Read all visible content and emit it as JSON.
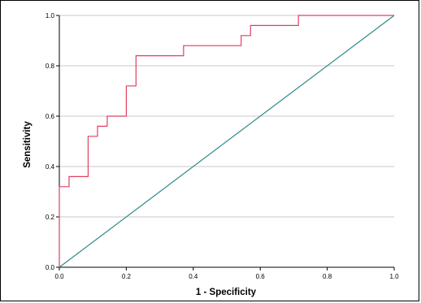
{
  "chart_data": {
    "type": "line",
    "xlabel": "1 - Specificity",
    "ylabel": "Sensitivity",
    "xlim": [
      0.0,
      1.0
    ],
    "ylim": [
      0.0,
      1.0
    ],
    "x_ticks": [
      "0.0",
      "0.2",
      "0.4",
      "0.6",
      "0.8",
      "1.0"
    ],
    "y_ticks": [
      "0.0",
      "0.2",
      "0.4",
      "0.6",
      "0.8",
      "1.0"
    ],
    "grid": "horizontal",
    "series": [
      {
        "color": "#e0405e",
        "step": true,
        "x": [
          0.0,
          0.0,
          0.029,
          0.029,
          0.086,
          0.086,
          0.114,
          0.114,
          0.143,
          0.143,
          0.2,
          0.2,
          0.229,
          0.229,
          0.371,
          0.371,
          0.543,
          0.543,
          0.571,
          0.571,
          0.714,
          0.714,
          1.0
        ],
        "y": [
          0.0,
          0.32,
          0.32,
          0.36,
          0.36,
          0.52,
          0.52,
          0.56,
          0.56,
          0.6,
          0.6,
          0.72,
          0.72,
          0.84,
          0.84,
          0.88,
          0.88,
          0.92,
          0.92,
          0.96,
          0.96,
          1.0,
          1.0
        ]
      },
      {
        "color": "#2f8a8a",
        "step": false,
        "x": [
          0.0,
          1.0
        ],
        "y": [
          0.0,
          1.0
        ]
      }
    ]
  }
}
